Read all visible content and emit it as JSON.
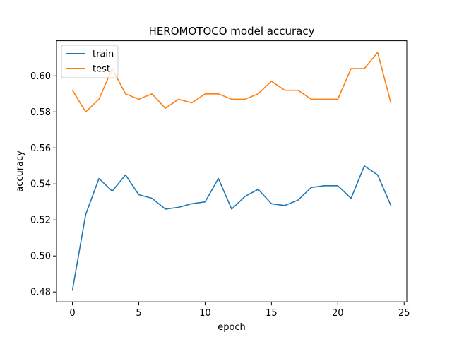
{
  "chart_data": {
    "type": "line",
    "title": "HEROMOTOCO model accuracy",
    "xlabel": "epoch",
    "ylabel": "accuracy",
    "xlim": [
      -1.2,
      25.2
    ],
    "ylim": [
      0.4745,
      0.6195
    ],
    "xticks": [
      0,
      5,
      10,
      15,
      20,
      25
    ],
    "yticks": [
      0.48,
      0.5,
      0.52,
      0.54,
      0.56,
      0.58,
      0.6
    ],
    "xtick_labels": [
      "0",
      "5",
      "10",
      "15",
      "20",
      "25"
    ],
    "ytick_labels": [
      "0.48",
      "0.50",
      "0.52",
      "0.54",
      "0.56",
      "0.58",
      "0.60"
    ],
    "grid": false,
    "legend_position": "upper-left",
    "x": [
      0,
      1,
      2,
      3,
      4,
      5,
      6,
      7,
      8,
      9,
      10,
      11,
      12,
      13,
      14,
      15,
      16,
      17,
      18,
      19,
      20,
      21,
      22,
      23,
      24
    ],
    "series": [
      {
        "name": "train",
        "color": "#1f77b4",
        "values": [
          0.481,
          0.523,
          0.543,
          0.536,
          0.545,
          0.534,
          0.532,
          0.526,
          0.527,
          0.529,
          0.53,
          0.543,
          0.526,
          0.533,
          0.537,
          0.529,
          0.528,
          0.531,
          0.538,
          0.539,
          0.539,
          0.532,
          0.55,
          0.545,
          0.528
        ]
      },
      {
        "name": "test",
        "color": "#ff7f0e",
        "values": [
          0.592,
          0.58,
          0.587,
          0.604,
          0.59,
          0.587,
          0.59,
          0.582,
          0.587,
          0.585,
          0.59,
          0.59,
          0.587,
          0.587,
          0.59,
          0.597,
          0.592,
          0.592,
          0.587,
          0.587,
          0.587,
          0.604,
          0.604,
          0.613,
          0.585
        ]
      }
    ]
  }
}
